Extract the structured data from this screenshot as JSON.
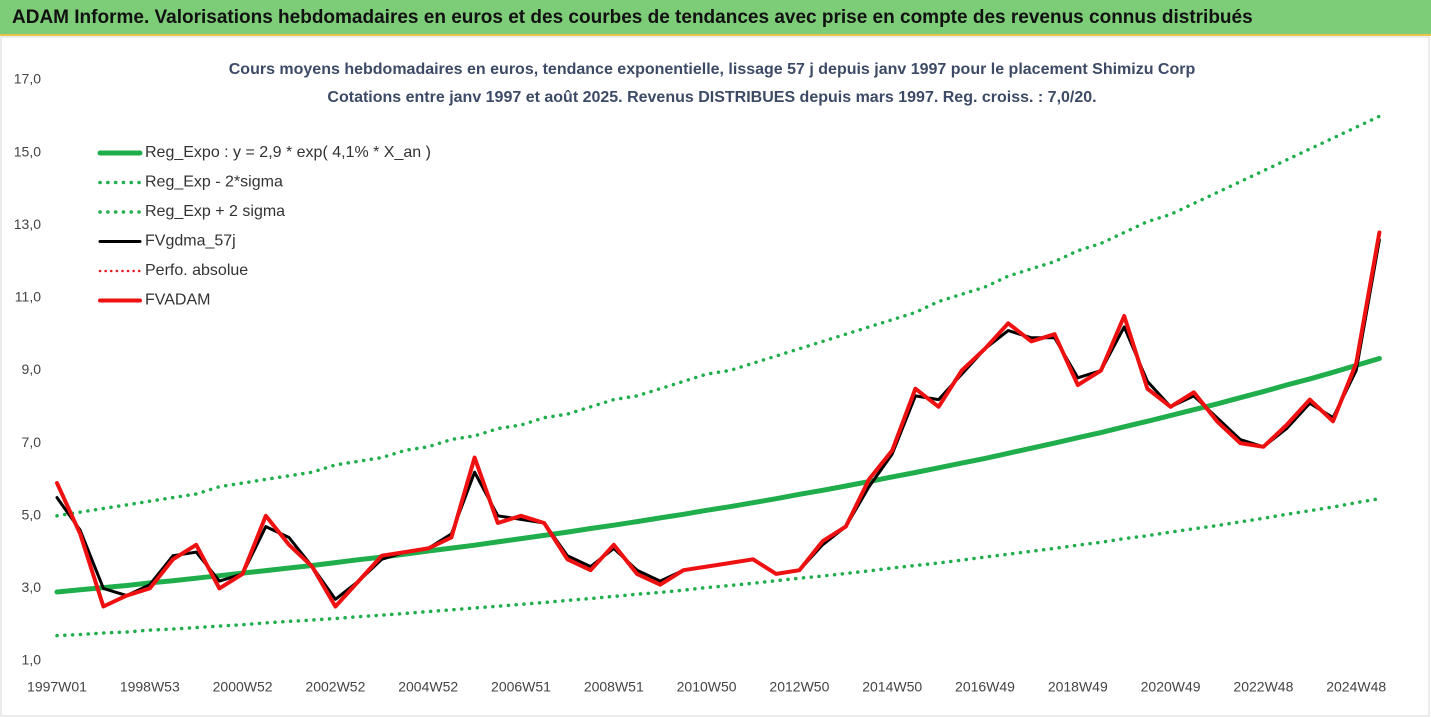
{
  "header": {
    "title": "ADAM Informe. Valorisations hebdomadaires en euros et des courbes de tendances avec prise en compte des revenus connus distribués"
  },
  "chart_data": {
    "type": "line",
    "title": "Cours moyens hebdomadaires en euros, tendance exponentielle, lissage 57 j depuis janv 1997 pour le placement Shimizu Corp",
    "subtitle": "Cotations entre janv 1997 et août 2025.  Revenus DISTRIBUES depuis mars 1997. Reg. croiss. : 7,0/20.",
    "categories": [
      "1997W01",
      null,
      null,
      null,
      "1998W53",
      null,
      null,
      null,
      "2000W52",
      null,
      null,
      null,
      "2002W52",
      null,
      null,
      null,
      "2004W52",
      null,
      null,
      null,
      "2006W51",
      null,
      null,
      null,
      "2008W51",
      null,
      null,
      null,
      "2010W50",
      null,
      null,
      null,
      "2012W50",
      null,
      null,
      null,
      "2014W50",
      null,
      null,
      null,
      "2016W49",
      null,
      null,
      null,
      "2018W49",
      null,
      null,
      null,
      "2020W49",
      null,
      null,
      null,
      "2022W48",
      null,
      null,
      null,
      "2024W48",
      null
    ],
    "ylim": [
      1,
      17
    ],
    "yticks": [
      {
        "value": 1,
        "label": "1,0"
      },
      {
        "value": 3,
        "label": "3,0"
      },
      {
        "value": 5,
        "label": "5,0"
      },
      {
        "value": 7,
        "label": "7,0"
      },
      {
        "value": 9,
        "label": "9,0"
      },
      {
        "value": 11,
        "label": "11,0"
      },
      {
        "value": 13,
        "label": "13,0"
      },
      {
        "value": 15,
        "label": "15,0"
      },
      {
        "value": 17,
        "label": "17,0"
      }
    ],
    "grid": false,
    "legend": "top-left",
    "series": [
      {
        "name": "Reg_Expo : y = 2,9 * exp( 4,1% *  X_an )",
        "color": "#1fae4b",
        "width": 5,
        "dashed": false,
        "values": [
          2.9,
          2.96,
          3.02,
          3.08,
          3.15,
          3.21,
          3.28,
          3.35,
          3.42,
          3.49,
          3.56,
          3.63,
          3.71,
          3.79,
          3.86,
          3.94,
          4.03,
          4.11,
          4.19,
          4.28,
          4.37,
          4.46,
          4.55,
          4.65,
          4.74,
          4.84,
          4.94,
          5.04,
          5.15,
          5.25,
          5.36,
          5.47,
          5.59,
          5.7,
          5.82,
          5.94,
          6.07,
          6.19,
          6.32,
          6.45,
          6.58,
          6.72,
          6.86,
          7.0,
          7.15,
          7.29,
          7.45,
          7.6,
          7.76,
          7.92,
          8.08,
          8.25,
          8.42,
          8.6,
          8.77,
          8.95,
          9.14,
          9.33
        ]
      },
      {
        "name": "Reg_Exp - 2*sigma",
        "color": "#1fae4b",
        "width": 3.5,
        "dashed": true,
        "values": [
          1.7,
          1.73,
          1.77,
          1.8,
          1.85,
          1.88,
          1.92,
          1.96,
          2.0,
          2.05,
          2.09,
          2.13,
          2.17,
          2.22,
          2.26,
          2.31,
          2.36,
          2.41,
          2.46,
          2.51,
          2.56,
          2.61,
          2.67,
          2.72,
          2.78,
          2.84,
          2.89,
          2.95,
          3.02,
          3.08,
          3.14,
          3.21,
          3.28,
          3.34,
          3.41,
          3.48,
          3.56,
          3.63,
          3.7,
          3.78,
          3.86,
          3.94,
          4.02,
          4.1,
          4.19,
          4.27,
          4.37,
          4.45,
          4.55,
          4.64,
          4.73,
          4.83,
          4.93,
          5.04,
          5.14,
          5.24,
          5.36,
          5.47
        ]
      },
      {
        "name": "Reg_Exp + 2 sigma",
        "color": "#1fae4b",
        "width": 3.5,
        "dashed": true,
        "values": [
          5.0,
          5.1,
          5.2,
          5.3,
          5.4,
          5.5,
          5.6,
          5.8,
          5.9,
          6.0,
          6.1,
          6.2,
          6.4,
          6.5,
          6.6,
          6.8,
          6.9,
          7.1,
          7.2,
          7.4,
          7.5,
          7.7,
          7.8,
          8.0,
          8.2,
          8.3,
          8.5,
          8.7,
          8.9,
          9.0,
          9.2,
          9.4,
          9.6,
          9.8,
          10.0,
          10.2,
          10.4,
          10.6,
          10.9,
          11.1,
          11.3,
          11.6,
          11.8,
          12.0,
          12.3,
          12.5,
          12.8,
          13.1,
          13.3,
          13.6,
          13.9,
          14.2,
          14.5,
          14.8,
          15.1,
          15.4,
          15.7,
          16.0
        ]
      },
      {
        "name": "FVgdma_57j",
        "color": "#000000",
        "width": 3,
        "dashed": false,
        "values": [
          5.5,
          4.6,
          3.0,
          2.8,
          3.1,
          3.9,
          4.0,
          3.2,
          3.4,
          4.7,
          4.4,
          3.6,
          2.7,
          3.2,
          3.8,
          4.0,
          4.1,
          4.5,
          6.2,
          5.0,
          4.9,
          4.8,
          3.9,
          3.6,
          4.1,
          3.5,
          3.2,
          3.5,
          3.6,
          3.7,
          3.8,
          3.4,
          3.5,
          4.2,
          4.7,
          5.8,
          6.7,
          8.3,
          8.2,
          8.9,
          9.6,
          10.1,
          9.9,
          9.9,
          8.8,
          9.0,
          10.2,
          8.7,
          8.0,
          8.3,
          7.7,
          7.1,
          6.9,
          7.4,
          8.1,
          7.7,
          9.0,
          12.6
        ]
      },
      {
        "name": "Perfo. absolue",
        "color": "#e8191c",
        "width": 2.5,
        "dashed": true,
        "values": [
          null,
          null,
          null,
          null,
          null,
          null,
          null,
          null,
          null,
          null,
          null,
          null,
          null,
          null,
          null,
          null,
          null,
          null,
          null,
          null,
          null,
          null,
          null,
          null,
          null,
          null,
          null,
          null,
          null,
          null,
          null,
          null,
          null,
          null,
          null,
          null,
          null,
          null,
          null,
          null,
          null,
          null,
          null,
          null,
          null,
          null,
          null,
          null,
          null,
          null,
          null,
          null,
          null,
          null,
          null,
          null,
          null,
          null
        ]
      },
      {
        "name": "FVADAM",
        "color": "#ee1111",
        "width": 4,
        "dashed": false,
        "values": [
          5.9,
          4.5,
          2.5,
          2.8,
          3.0,
          3.8,
          4.2,
          3.0,
          3.4,
          5.0,
          4.2,
          3.6,
          2.5,
          3.2,
          3.9,
          4.0,
          4.1,
          4.4,
          6.6,
          4.8,
          5.0,
          4.8,
          3.8,
          3.5,
          4.2,
          3.4,
          3.1,
          3.5,
          3.6,
          3.7,
          3.8,
          3.4,
          3.5,
          4.3,
          4.7,
          6.0,
          6.8,
          8.5,
          8.0,
          9.0,
          9.6,
          10.3,
          9.8,
          10.0,
          8.6,
          9.0,
          10.5,
          8.5,
          8.0,
          8.4,
          7.6,
          7.0,
          6.9,
          7.5,
          8.2,
          7.6,
          9.2,
          12.8
        ]
      }
    ]
  }
}
